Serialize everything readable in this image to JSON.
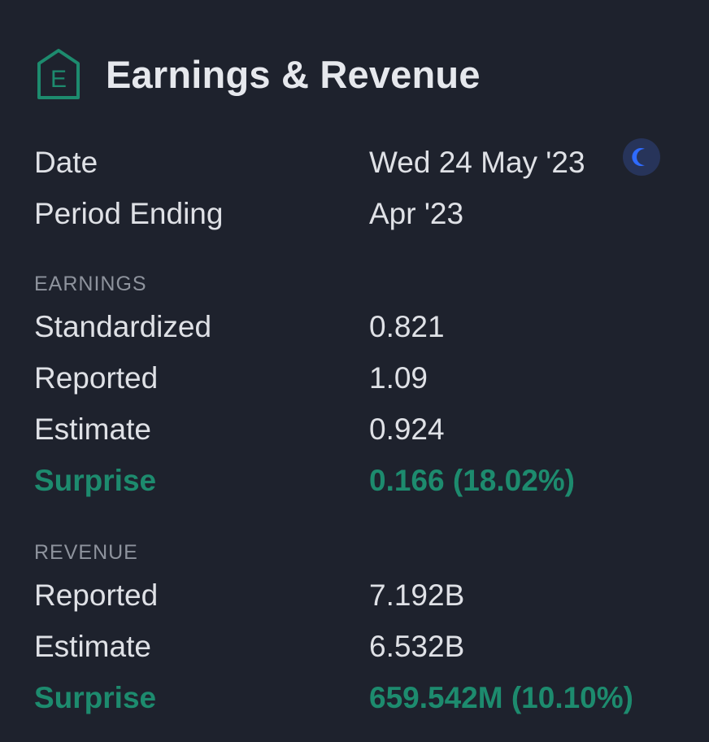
{
  "header": {
    "icon": "earnings-badge-icon",
    "icon_letter": "E",
    "title": "Earnings & Revenue"
  },
  "summary": [
    {
      "label": "Date",
      "value": "Wed 24 May '23"
    },
    {
      "label": "Period Ending",
      "value": "Apr '23"
    }
  ],
  "timing_icon": "moon-icon",
  "earnings": {
    "section_label": "EARNINGS",
    "rows": [
      {
        "label": "Standardized",
        "value": "0.821"
      },
      {
        "label": "Reported",
        "value": "1.09"
      },
      {
        "label": "Estimate",
        "value": "0.924"
      },
      {
        "label": "Surprise",
        "value": "0.166 (18.02%)"
      }
    ]
  },
  "revenue": {
    "section_label": "REVENUE",
    "rows": [
      {
        "label": "Reported",
        "value": "7.192B"
      },
      {
        "label": "Estimate",
        "value": "6.532B"
      },
      {
        "label": "Surprise",
        "value": "659.542M (10.10%)"
      }
    ]
  },
  "colors": {
    "background": "#1e222d",
    "text": "#dfe1e6",
    "muted": "#8e939d",
    "positive": "#1d8b6e",
    "accent_blue": "#2f6bff"
  }
}
